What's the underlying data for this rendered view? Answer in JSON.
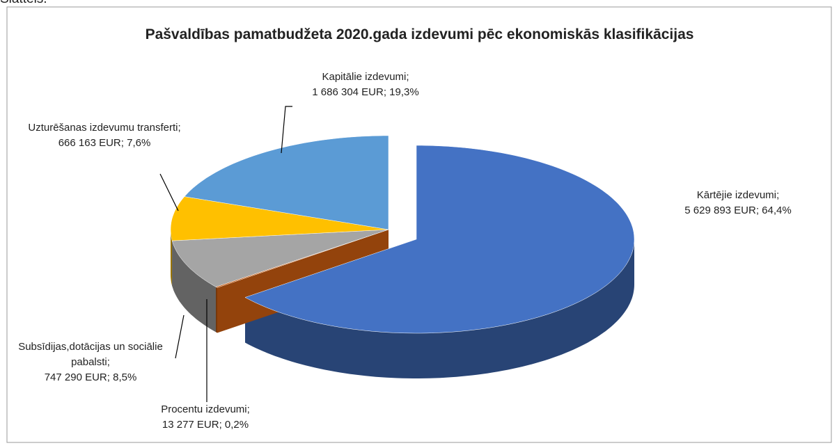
{
  "caption": "Slattels.",
  "chart_data": {
    "type": "pie",
    "title": "Pašvaldības pamatbudžeta 2020.gada izdevumi pēc ekonomiskās klasifikācijas",
    "categories": [
      "Kārtējie izdevumi;",
      "Procentu izdevumi;",
      "Subsīdijas,dotācijas un sociālie pabalsti;",
      "Uzturēšanas izdevumu transferti;",
      "Kapitālie izdevumi;"
    ],
    "values": [
      5629893,
      13277,
      747290,
      666163,
      1686304
    ],
    "value_labels": [
      "5 629 893 EUR; 64,4%",
      "13 277 EUR; 0,2%",
      "747 290 EUR; 8,5%",
      "666 163 EUR; 7,6%",
      "1 686 304 EUR; 19,3%"
    ],
    "colors": [
      "#4472c4",
      "#c55a11",
      "#a5a5a5",
      "#ffc000",
      "#5b9bd5"
    ]
  }
}
